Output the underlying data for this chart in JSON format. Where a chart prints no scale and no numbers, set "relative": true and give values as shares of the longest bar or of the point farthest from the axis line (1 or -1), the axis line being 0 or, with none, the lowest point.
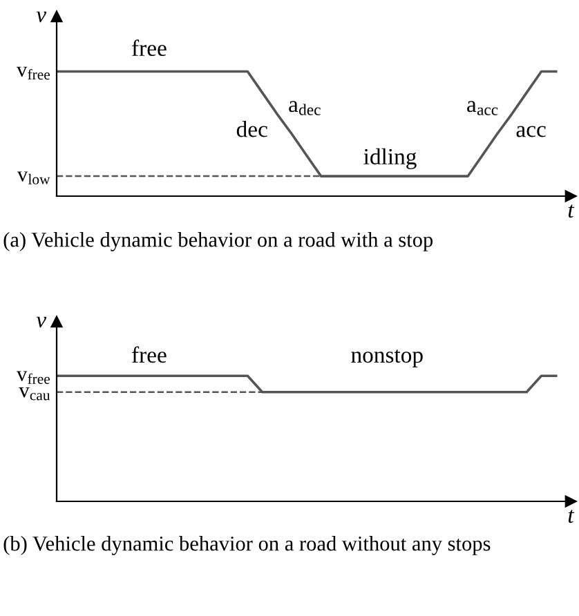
{
  "chart_data": [
    {
      "type": "line",
      "title": "(a) Vehicle dynamic behavior on a road with a stop",
      "xlabel": "t",
      "ylabel": "v",
      "relative": true,
      "categories": [
        null,
        null,
        null,
        null,
        null,
        null,
        null,
        null,
        null,
        null,
        null,
        null,
        null,
        null,
        null,
        null,
        null,
        null,
        null,
        null,
        null,
        null,
        null,
        null,
        null,
        null,
        null,
        null,
        null,
        null,
        null,
        null,
        null,
        null,
        null
      ],
      "series": [
        {
          "color": "#555555",
          "values": [
            1,
            1,
            1,
            1,
            1,
            1,
            1,
            1,
            1,
            1,
            1,
            1,
            1,
            1,
            0.83,
            0.66,
            0.5,
            0.33,
            0.16,
            0.16,
            0.16,
            0.16,
            0.16,
            0.16,
            0.16,
            0.16,
            0.16,
            0.16,
            0.16,
            0.33,
            0.5,
            0.66,
            0.83,
            1,
            1
          ]
        }
      ],
      "ref_lines": [
        {
          "axis": "y",
          "value": 0.16,
          "label": "v$_{low}$",
          "line_style": "dashed",
          "color": "#555555"
        }
      ],
      "annotations": [
        "v$_{free}$",
        "free",
        "dec",
        "a$_{dec}$",
        "idling",
        "a$_{acc}$",
        "acc"
      ],
      "marker": "none",
      "line_style": "solid"
    },
    {
      "type": "line",
      "title": "(b) Vehicle dynamic behavior on a road without any stops",
      "xlabel": "t",
      "ylabel": "v",
      "relative": true,
      "categories": [
        null,
        null,
        null,
        null,
        null,
        null,
        null,
        null,
        null,
        null,
        null,
        null,
        null,
        null,
        null,
        null,
        null,
        null,
        null,
        null,
        null,
        null,
        null,
        null,
        null,
        null,
        null,
        null,
        null,
        null,
        null,
        null,
        null,
        null,
        null
      ],
      "series": [
        {
          "color": "#555555",
          "values": [
            1,
            1,
            1,
            1,
            1,
            1,
            1,
            1,
            1,
            1,
            1,
            1,
            1,
            1,
            0.87,
            0.87,
            0.87,
            0.87,
            0.87,
            0.87,
            0.87,
            0.87,
            0.87,
            0.87,
            0.87,
            0.87,
            0.87,
            0.87,
            0.87,
            0.87,
            0.87,
            0.87,
            0.87,
            1,
            1
          ]
        }
      ],
      "ref_lines": [
        {
          "axis": "y",
          "value": 0.87,
          "label": "v$_{cau}$",
          "line_style": "dashed",
          "color": "#555555"
        }
      ],
      "annotations": [
        "v$_{free}$",
        "free",
        "nonstop"
      ],
      "marker": "none",
      "line_style": "solid"
    }
  ]
}
